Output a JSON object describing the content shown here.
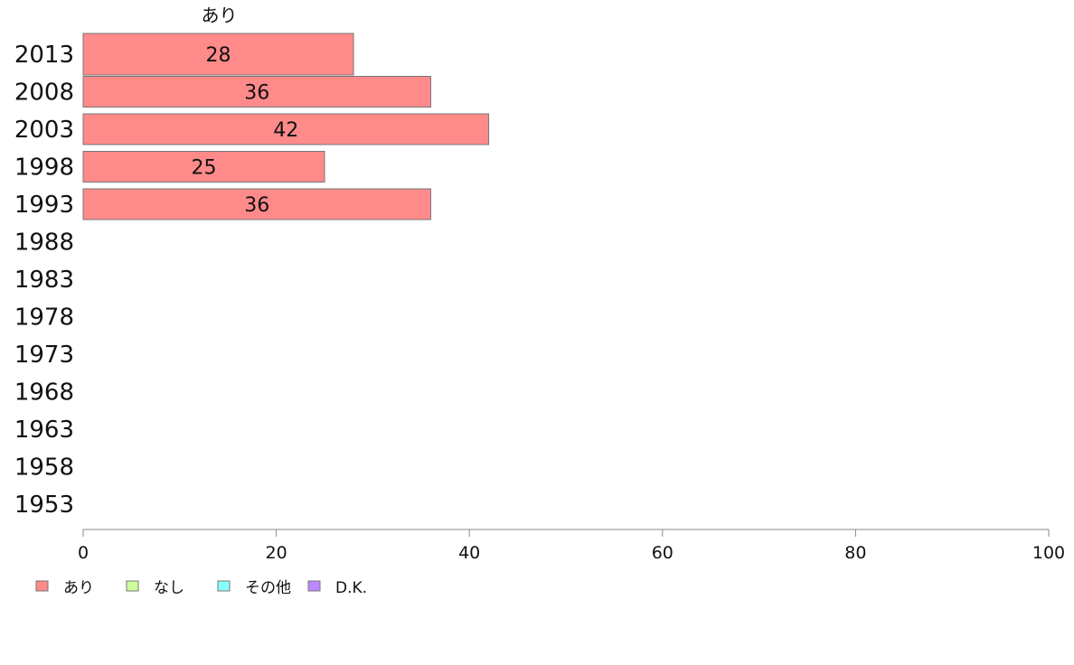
{
  "chart_data": {
    "type": "bar",
    "orientation": "horizontal",
    "stacked": true,
    "column_header": "あり",
    "categories": [
      "2013",
      "2008",
      "2003",
      "1998",
      "1993",
      "1988",
      "1983",
      "1978",
      "1973",
      "1968",
      "1963",
      "1958",
      "1953"
    ],
    "series": [
      {
        "name": "あり",
        "color": "#ff8a8a",
        "values": [
          28,
          36,
          42,
          25,
          36,
          null,
          null,
          null,
          null,
          null,
          null,
          null,
          null
        ]
      },
      {
        "name": "なし",
        "color": "#ccff99",
        "values": [
          null,
          null,
          null,
          null,
          null,
          null,
          null,
          null,
          null,
          null,
          null,
          null,
          null
        ]
      },
      {
        "name": "その他",
        "color": "#88ffff",
        "values": [
          null,
          null,
          null,
          null,
          null,
          null,
          null,
          null,
          null,
          null,
          null,
          null,
          null
        ]
      },
      {
        "name": "D.K.",
        "color": "#bb88ff",
        "values": [
          null,
          null,
          null,
          null,
          null,
          null,
          null,
          null,
          null,
          null,
          null,
          null,
          null
        ]
      }
    ],
    "data_labels": [
      "28",
      "36",
      "42",
      "25",
      "36"
    ],
    "xlim": [
      0,
      100
    ],
    "xticks": [
      0,
      20,
      40,
      60,
      80,
      100
    ],
    "xlabel": "",
    "ylabel": "",
    "grid": false,
    "legend_position": "bottom-left"
  }
}
